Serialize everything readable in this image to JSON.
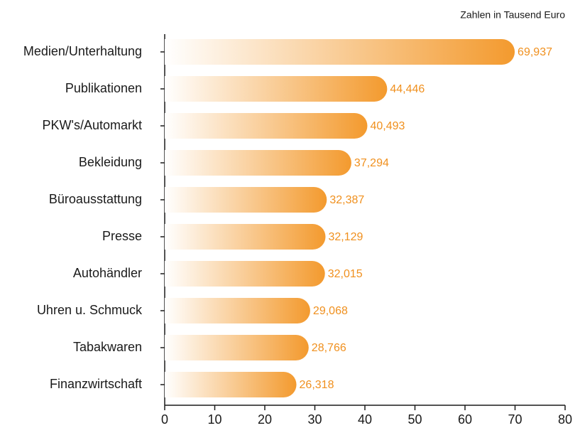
{
  "chart_data": {
    "type": "bar",
    "orientation": "horizontal",
    "subtitle": "Zahlen in Tausend Euro",
    "categories": [
      "Medien/Unterhaltung",
      "Publikationen",
      "PKW's/Automarkt",
      "Bekleidung",
      "Büroausstattung",
      "Presse",
      "Autohändler",
      "Uhren u. Schmuck",
      "Tabakwaren",
      "Finanzwirtschaft"
    ],
    "values": [
      69.937,
      44.446,
      40.493,
      37.294,
      32.387,
      32.129,
      32.015,
      29.068,
      28.766,
      26.318
    ],
    "value_labels": [
      "69,937",
      "44,446",
      "40,493",
      "37,294",
      "32,387",
      "32,129",
      "32,015",
      "29,068",
      "28,766",
      "26,318"
    ],
    "color": "#f39a2e",
    "xlim": [
      0,
      80
    ],
    "xticks": [
      0,
      10,
      20,
      30,
      40,
      50,
      60,
      70,
      80
    ]
  }
}
